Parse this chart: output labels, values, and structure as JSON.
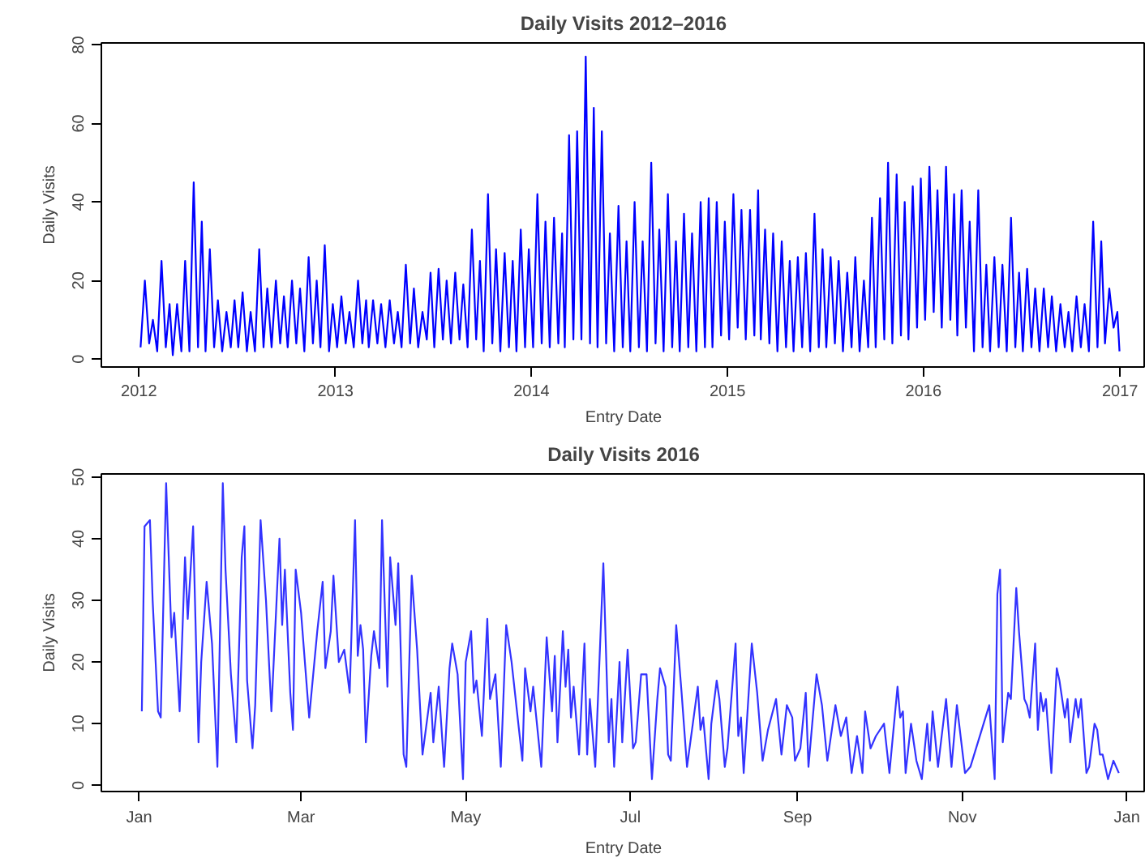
{
  "chart_data": [
    {
      "type": "line",
      "title": "Daily Visits 2012–2016",
      "xlabel": "Entry Date",
      "ylabel": "Daily Visits",
      "color": "#0000ff",
      "xlim": [
        "2011-10-23",
        "2017-02-18"
      ],
      "ylim": [
        -2,
        80.5
      ],
      "yticks": [
        0,
        20,
        40,
        60,
        80
      ],
      "xticks": [
        {
          "value": "2012-01-01",
          "label": "2012"
        },
        {
          "value": "2013-01-01",
          "label": "2013"
        },
        {
          "value": "2014-01-01",
          "label": "2014"
        },
        {
          "value": "2015-01-01",
          "label": "2015"
        },
        {
          "value": "2016-01-01",
          "label": "2016"
        },
        {
          "value": "2017-01-01",
          "label": "2017"
        }
      ],
      "x": [
        "2012-01-04",
        "2012-01-12",
        "2012-01-20",
        "2012-01-27",
        "2012-02-04",
        "2012-02-12",
        "2012-02-20",
        "2012-02-27",
        "2012-03-04",
        "2012-03-12",
        "2012-03-20",
        "2012-03-27",
        "2012-04-04",
        "2012-04-12",
        "2012-04-20",
        "2012-04-27",
        "2012-05-04",
        "2012-05-12",
        "2012-05-20",
        "2012-05-27",
        "2012-06-04",
        "2012-06-12",
        "2012-06-20",
        "2012-06-27",
        "2012-07-04",
        "2012-07-12",
        "2012-07-20",
        "2012-07-27",
        "2012-08-04",
        "2012-08-12",
        "2012-08-20",
        "2012-08-27",
        "2012-09-04",
        "2012-09-12",
        "2012-09-20",
        "2012-09-27",
        "2012-10-04",
        "2012-10-12",
        "2012-10-20",
        "2012-10-27",
        "2012-11-04",
        "2012-11-12",
        "2012-11-20",
        "2012-11-27",
        "2012-12-04",
        "2012-12-12",
        "2012-12-20",
        "2012-12-27",
        "2013-01-04",
        "2013-01-12",
        "2013-01-20",
        "2013-01-27",
        "2013-02-04",
        "2013-02-12",
        "2013-02-20",
        "2013-02-27",
        "2013-03-04",
        "2013-03-12",
        "2013-03-20",
        "2013-03-27",
        "2013-04-04",
        "2013-04-12",
        "2013-04-20",
        "2013-04-27",
        "2013-05-04",
        "2013-05-12",
        "2013-05-20",
        "2013-05-27",
        "2013-06-04",
        "2013-06-12",
        "2013-06-20",
        "2013-06-27",
        "2013-07-04",
        "2013-07-12",
        "2013-07-20",
        "2013-07-27",
        "2013-08-04",
        "2013-08-12",
        "2013-08-20",
        "2013-08-27",
        "2013-09-04",
        "2013-09-12",
        "2013-09-20",
        "2013-09-27",
        "2013-10-04",
        "2013-10-12",
        "2013-10-20",
        "2013-10-27",
        "2013-11-04",
        "2013-11-12",
        "2013-11-20",
        "2013-11-27",
        "2013-12-04",
        "2013-12-12",
        "2013-12-20",
        "2013-12-27",
        "2014-01-04",
        "2014-01-12",
        "2014-01-20",
        "2014-01-27",
        "2014-02-04",
        "2014-02-12",
        "2014-02-20",
        "2014-02-27",
        "2014-03-04",
        "2014-03-12",
        "2014-03-20",
        "2014-03-27",
        "2014-04-04",
        "2014-04-12",
        "2014-04-20",
        "2014-04-27",
        "2014-05-04",
        "2014-05-12",
        "2014-05-20",
        "2014-05-27",
        "2014-06-04",
        "2014-06-12",
        "2014-06-20",
        "2014-06-27",
        "2014-07-04",
        "2014-07-12",
        "2014-07-20",
        "2014-07-27",
        "2014-08-04",
        "2014-08-12",
        "2014-08-20",
        "2014-08-27",
        "2014-09-04",
        "2014-09-12",
        "2014-09-20",
        "2014-09-27",
        "2014-10-04",
        "2014-10-12",
        "2014-10-20",
        "2014-10-27",
        "2014-11-04",
        "2014-11-12",
        "2014-11-20",
        "2014-11-27",
        "2014-12-04",
        "2014-12-12",
        "2014-12-20",
        "2014-12-27",
        "2015-01-04",
        "2015-01-12",
        "2015-01-20",
        "2015-01-27",
        "2015-02-04",
        "2015-02-12",
        "2015-02-20",
        "2015-02-27",
        "2015-03-04",
        "2015-03-12",
        "2015-03-20",
        "2015-03-27",
        "2015-04-04",
        "2015-04-12",
        "2015-04-20",
        "2015-04-27",
        "2015-05-04",
        "2015-05-12",
        "2015-05-20",
        "2015-05-27",
        "2015-06-04",
        "2015-06-12",
        "2015-06-20",
        "2015-06-27",
        "2015-07-04",
        "2015-07-12",
        "2015-07-20",
        "2015-07-27",
        "2015-08-04",
        "2015-08-12",
        "2015-08-20",
        "2015-08-27",
        "2015-09-04",
        "2015-09-12",
        "2015-09-20",
        "2015-09-27",
        "2015-10-04",
        "2015-10-12",
        "2015-10-20",
        "2015-10-27",
        "2015-11-04",
        "2015-11-12",
        "2015-11-20",
        "2015-11-27",
        "2015-12-04",
        "2015-12-12",
        "2015-12-20",
        "2015-12-27",
        "2016-01-04",
        "2016-01-12",
        "2016-01-20",
        "2016-01-27",
        "2016-02-04",
        "2016-02-12",
        "2016-02-20",
        "2016-02-27",
        "2016-03-04",
        "2016-03-12",
        "2016-03-20",
        "2016-03-27",
        "2016-04-04",
        "2016-04-12",
        "2016-04-20",
        "2016-04-27",
        "2016-05-04",
        "2016-05-12",
        "2016-05-20",
        "2016-05-27",
        "2016-06-04",
        "2016-06-12",
        "2016-06-20",
        "2016-06-27",
        "2016-07-04",
        "2016-07-12",
        "2016-07-20",
        "2016-07-27",
        "2016-08-04",
        "2016-08-12",
        "2016-08-20",
        "2016-08-27",
        "2016-09-04",
        "2016-09-12",
        "2016-09-20",
        "2016-09-27",
        "2016-10-04",
        "2016-10-12",
        "2016-10-20",
        "2016-10-27",
        "2016-11-04",
        "2016-11-12",
        "2016-11-20",
        "2016-11-27",
        "2016-12-04",
        "2016-12-12",
        "2016-12-20",
        "2016-12-27",
        "2016-12-31"
      ],
      "values": [
        3,
        20,
        4,
        10,
        2,
        25,
        3,
        14,
        1,
        14,
        2,
        25,
        2,
        45,
        3,
        35,
        2,
        28,
        3,
        15,
        2,
        12,
        3,
        15,
        3,
        17,
        2,
        12,
        2,
        28,
        3,
        18,
        3,
        20,
        4,
        16,
        3,
        20,
        4,
        18,
        2,
        26,
        4,
        20,
        3,
        29,
        2,
        14,
        3,
        16,
        4,
        12,
        3,
        20,
        4,
        15,
        3,
        15,
        4,
        14,
        3,
        15,
        4,
        12,
        3,
        24,
        4,
        18,
        3,
        12,
        5,
        22,
        3,
        23,
        5,
        20,
        4,
        22,
        5,
        19,
        3,
        33,
        5,
        25,
        2,
        42,
        4,
        28,
        2,
        27,
        3,
        25,
        2,
        33,
        3,
        28,
        3,
        42,
        4,
        35,
        3,
        36,
        4,
        32,
        3,
        57,
        5,
        58,
        5,
        77,
        4,
        64,
        3,
        58,
        4,
        32,
        2,
        39,
        3,
        30,
        2,
        40,
        3,
        30,
        2,
        50,
        4,
        33,
        2,
        42,
        3,
        30,
        2,
        37,
        3,
        32,
        2,
        40,
        3,
        41,
        3,
        40,
        6,
        35,
        5,
        42,
        8,
        38,
        5,
        38,
        6,
        43,
        5,
        33,
        4,
        32,
        2,
        30,
        3,
        25,
        2,
        26,
        3,
        27,
        2,
        37,
        3,
        28,
        3,
        26,
        4,
        25,
        2,
        22,
        3,
        26,
        2,
        20,
        3,
        36,
        3,
        41,
        5,
        50,
        4,
        47,
        6,
        40,
        5,
        44,
        8,
        46,
        10,
        49,
        12,
        43,
        8,
        49,
        10,
        42,
        6,
        43,
        8,
        35,
        2,
        43,
        3,
        24,
        2,
        26,
        3,
        24,
        2,
        36,
        3,
        22,
        2,
        23,
        3,
        18,
        2,
        18,
        3,
        16,
        2,
        14,
        3,
        12,
        2,
        16,
        3,
        14,
        2,
        35,
        3,
        30,
        4,
        18,
        8,
        12,
        2
      ]
    },
    {
      "type": "line",
      "title": "Daily Visits 2016",
      "xlabel": "Entry Date",
      "ylabel": "Daily Visits",
      "color": "#3333ff",
      "xlim": [
        "2015-12-18",
        "2017-01-08"
      ],
      "ylim": [
        -1,
        50.5
      ],
      "yticks": [
        0,
        10,
        20,
        30,
        40,
        50
      ],
      "xticks": [
        {
          "value": "2016-01-01",
          "label": "Jan"
        },
        {
          "value": "2016-03-01",
          "label": "Mar"
        },
        {
          "value": "2016-05-01",
          "label": "May"
        },
        {
          "value": "2016-07-01",
          "label": "Jul"
        },
        {
          "value": "2016-09-01",
          "label": "Sep"
        },
        {
          "value": "2016-11-01",
          "label": "Nov"
        },
        {
          "value": "2017-01-01",
          "label": "Jan"
        }
      ],
      "x": [
        "2016-01-02",
        "2016-01-03",
        "2016-01-05",
        "2016-01-06",
        "2016-01-08",
        "2016-01-09",
        "2016-01-11",
        "2016-01-13",
        "2016-01-14",
        "2016-01-16",
        "2016-01-18",
        "2016-01-19",
        "2016-01-21",
        "2016-01-23",
        "2016-01-24",
        "2016-01-26",
        "2016-01-28",
        "2016-01-30",
        "2016-02-01",
        "2016-02-02",
        "2016-02-04",
        "2016-02-06",
        "2016-02-08",
        "2016-02-09",
        "2016-02-10",
        "2016-02-12",
        "2016-02-13",
        "2016-02-15",
        "2016-02-17",
        "2016-02-19",
        "2016-02-22",
        "2016-02-23",
        "2016-02-24",
        "2016-02-26",
        "2016-02-27",
        "2016-02-28",
        "2016-03-01",
        "2016-03-04",
        "2016-03-07",
        "2016-03-09",
        "2016-03-10",
        "2016-03-12",
        "2016-03-13",
        "2016-03-15",
        "2016-03-17",
        "2016-03-19",
        "2016-03-21",
        "2016-03-22",
        "2016-03-23",
        "2016-03-24",
        "2016-03-25",
        "2016-03-27",
        "2016-03-28",
        "2016-03-30",
        "2016-03-31",
        "2016-04-02",
        "2016-04-03",
        "2016-04-05",
        "2016-04-06",
        "2016-04-08",
        "2016-04-09",
        "2016-04-11",
        "2016-04-13",
        "2016-04-15",
        "2016-04-18",
        "2016-04-19",
        "2016-04-21",
        "2016-04-23",
        "2016-04-25",
        "2016-04-26",
        "2016-04-28",
        "2016-04-30",
        "2016-05-01",
        "2016-05-03",
        "2016-05-04",
        "2016-05-05",
        "2016-05-07",
        "2016-05-09",
        "2016-05-10",
        "2016-05-12",
        "2016-05-14",
        "2016-05-16",
        "2016-05-18",
        "2016-05-20",
        "2016-05-22",
        "2016-05-23",
        "2016-05-25",
        "2016-05-26",
        "2016-05-29",
        "2016-05-31",
        "2016-06-02",
        "2016-06-03",
        "2016-06-04",
        "2016-06-06",
        "2016-06-07",
        "2016-06-08",
        "2016-06-09",
        "2016-06-10",
        "2016-06-12",
        "2016-06-14",
        "2016-06-15",
        "2016-06-16",
        "2016-06-18",
        "2016-06-21",
        "2016-06-23",
        "2016-06-24",
        "2016-06-25",
        "2016-06-27",
        "2016-06-28",
        "2016-06-30",
        "2016-07-02",
        "2016-07-03",
        "2016-07-05",
        "2016-07-07",
        "2016-07-09",
        "2016-07-11",
        "2016-07-12",
        "2016-07-14",
        "2016-07-15",
        "2016-07-16",
        "2016-07-18",
        "2016-07-20",
        "2016-07-22",
        "2016-07-26",
        "2016-07-27",
        "2016-07-28",
        "2016-07-30",
        "2016-07-31",
        "2016-08-02",
        "2016-08-03",
        "2016-08-05",
        "2016-08-06",
        "2016-08-09",
        "2016-08-10",
        "2016-08-11",
        "2016-08-12",
        "2016-08-15",
        "2016-08-17",
        "2016-08-19",
        "2016-08-21",
        "2016-08-24",
        "2016-08-26",
        "2016-08-28",
        "2016-08-30",
        "2016-08-31",
        "2016-09-02",
        "2016-09-04",
        "2016-09-05",
        "2016-09-08",
        "2016-09-10",
        "2016-09-12",
        "2016-09-15",
        "2016-09-17",
        "2016-09-19",
        "2016-09-21",
        "2016-09-23",
        "2016-09-25",
        "2016-09-26",
        "2016-09-28",
        "2016-09-30",
        "2016-10-03",
        "2016-10-05",
        "2016-10-08",
        "2016-10-09",
        "2016-10-10",
        "2016-10-11",
        "2016-10-13",
        "2016-10-15",
        "2016-10-17",
        "2016-10-19",
        "2016-10-20",
        "2016-10-21",
        "2016-10-23",
        "2016-10-26",
        "2016-10-28",
        "2016-10-30",
        "2016-11-02",
        "2016-11-04",
        "2016-11-11",
        "2016-11-13",
        "2016-11-14",
        "2016-11-15",
        "2016-11-16",
        "2016-11-18",
        "2016-11-19",
        "2016-11-21",
        "2016-11-22",
        "2016-11-24",
        "2016-11-25",
        "2016-11-26",
        "2016-11-28",
        "2016-11-29",
        "2016-11-30",
        "2016-12-01",
        "2016-12-02",
        "2016-12-04",
        "2016-12-06",
        "2016-12-07",
        "2016-12-09",
        "2016-12-10",
        "2016-12-11",
        "2016-12-13",
        "2016-12-14",
        "2016-12-15",
        "2016-12-17",
        "2016-12-18",
        "2016-12-20",
        "2016-12-21",
        "2016-12-22",
        "2016-12-23",
        "2016-12-25",
        "2016-12-27",
        "2016-12-29"
      ],
      "values": [
        12,
        42,
        43,
        30,
        12,
        11,
        49,
        24,
        28,
        12,
        37,
        27,
        42,
        7,
        20,
        33,
        23,
        3,
        49,
        35,
        18,
        7,
        37,
        42,
        17,
        6,
        13,
        43,
        30,
        12,
        40,
        26,
        35,
        15,
        9,
        35,
        28,
        11,
        25,
        33,
        19,
        25,
        34,
        20,
        22,
        15,
        43,
        21,
        26,
        22,
        7,
        21,
        25,
        19,
        43,
        16,
        37,
        26,
        36,
        5,
        3,
        34,
        22,
        5,
        15,
        7,
        16,
        3,
        19,
        23,
        18,
        1,
        20,
        25,
        15,
        17,
        8,
        27,
        14,
        18,
        3,
        26,
        20,
        12,
        4,
        19,
        12,
        16,
        3,
        24,
        12,
        21,
        7,
        25,
        16,
        22,
        11,
        16,
        5,
        23,
        5,
        14,
        3,
        36,
        7,
        14,
        3,
        20,
        7,
        22,
        6,
        7,
        18,
        18,
        1,
        14,
        19,
        16,
        5,
        4,
        26,
        15,
        3,
        16,
        9,
        11,
        1,
        10,
        17,
        14,
        3,
        6,
        23,
        8,
        11,
        2,
        23,
        15,
        4,
        9,
        14,
        5,
        13,
        11,
        4,
        6,
        15,
        3,
        18,
        13,
        4,
        13,
        8,
        11,
        2,
        8,
        2,
        12,
        6,
        8,
        10,
        2,
        16,
        11,
        12,
        2,
        10,
        4,
        1,
        10,
        4,
        12,
        3,
        14,
        3,
        13,
        2,
        3,
        13,
        1,
        31,
        35,
        7,
        15,
        14,
        32,
        25,
        14,
        13,
        11,
        23,
        9,
        15,
        12,
        14,
        2,
        19,
        17,
        11,
        14,
        7,
        14,
        11,
        14,
        2,
        3,
        10,
        9,
        5,
        5,
        1,
        4,
        2
      ]
    }
  ]
}
